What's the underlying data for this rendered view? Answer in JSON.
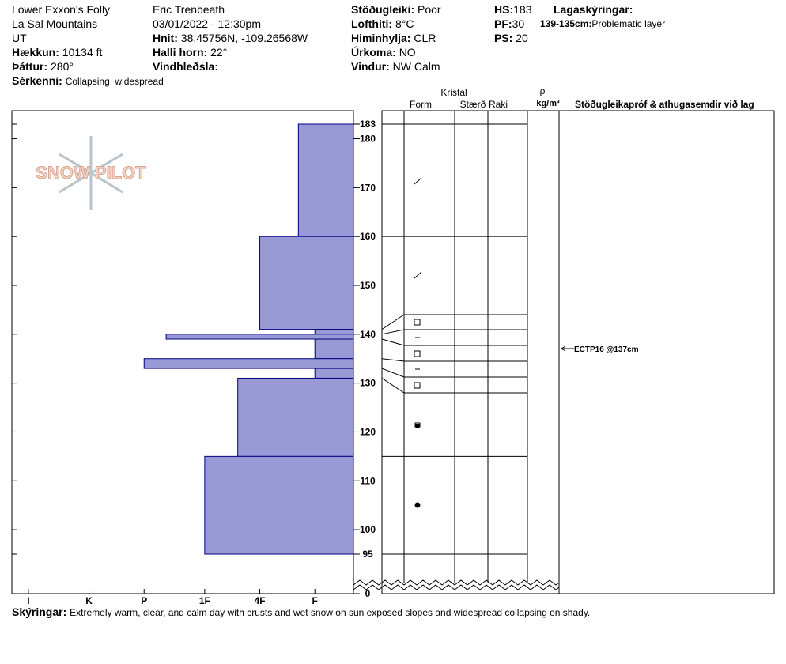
{
  "header": {
    "site": "Lower Exxon's Folly",
    "range": "La Sal Mountains",
    "state": "UT",
    "elevation": {
      "label": "Hækkun:",
      "value": "10134 ft"
    },
    "aspect": {
      "label": "Þáttur:",
      "value": "280°"
    },
    "features": {
      "label": "Sérkenni:",
      "value": "Collapsing, widespread"
    },
    "observer": "Eric Trenbeath",
    "datetime": "03/01/2022 - 12:30pm",
    "coords": {
      "label": "Hnit:",
      "value": "38.45756N, -109.26568W"
    },
    "slope": {
      "label": "Halli horn:",
      "value": "22°"
    },
    "wind_loading": {
      "label": "Vindhleðsla:"
    },
    "stability": {
      "label": "Stöðugleiki:",
      "value": "Poor"
    },
    "air_temp": {
      "label": "Lofthiti:",
      "value": "8°C"
    },
    "sky": {
      "label": "Himinhylja:",
      "value": "CLR"
    },
    "precip": {
      "label": "Úrkoma:",
      "value": "NO"
    },
    "wind": {
      "label": "Vindur:",
      "value": "NW Calm"
    },
    "hs": {
      "label": "HS:",
      "value": "183"
    },
    "pf": {
      "label": "PF:",
      "value": "30"
    },
    "ps": {
      "label": "PS:",
      "value": "20"
    },
    "legend_title": "Lagaskýringar:",
    "legend_item": {
      "label": "139-135cm:",
      "value": "Problematic layer"
    }
  },
  "logo": "SNOW PILOT",
  "columns": {
    "crystal": "Kristal",
    "form": "Form",
    "size": "Stærð",
    "moisture": "Raki",
    "density": "ρ",
    "density_unit": "kg/m³",
    "tests": "Stöðugleikapróf & athugasemdir við lag"
  },
  "test_note": "ECTP16 @137cm",
  "comments": {
    "label": "Skýringar:",
    "value": "Extremely warm, clear, and calm day with crusts and wet snow on sun exposed slopes and widespread collapsing on shady."
  },
  "chart_data": {
    "type": "hardness-profile",
    "layers": [
      {
        "top": 183,
        "bottom": 160,
        "hardness": 1.0
      },
      {
        "top": 160,
        "bottom": 141,
        "hardness": 1.7
      },
      {
        "top": 141,
        "bottom": 140,
        "hardness": 0.7
      },
      {
        "top": 140,
        "bottom": 139,
        "hardness": 3.4
      },
      {
        "top": 139,
        "bottom": 135,
        "hardness": 0.7
      },
      {
        "top": 135,
        "bottom": 133,
        "hardness": 3.8
      },
      {
        "top": 133,
        "bottom": 131,
        "hardness": 0.7
      },
      {
        "top": 131,
        "bottom": 115,
        "hardness": 2.1
      },
      {
        "top": 115,
        "bottom": 95,
        "hardness": 2.7
      }
    ],
    "color": "#9999d6",
    "xlim": [
      0,
      6.2
    ],
    "xticks": [
      {
        "value": 5.9,
        "label": "I"
      },
      {
        "value": 4.8,
        "label": "K"
      },
      {
        "value": 3.8,
        "label": "P"
      },
      {
        "value": 2.7,
        "label": "1F"
      },
      {
        "value": 1.7,
        "label": "4F"
      },
      {
        "value": 0.7,
        "label": "F"
      }
    ],
    "ylim": [
      0,
      183
    ],
    "axis_break": [
      0,
      95
    ],
    "yticks": [
      0,
      95,
      100,
      110,
      120,
      130,
      140,
      150,
      160,
      170,
      180,
      183
    ]
  }
}
